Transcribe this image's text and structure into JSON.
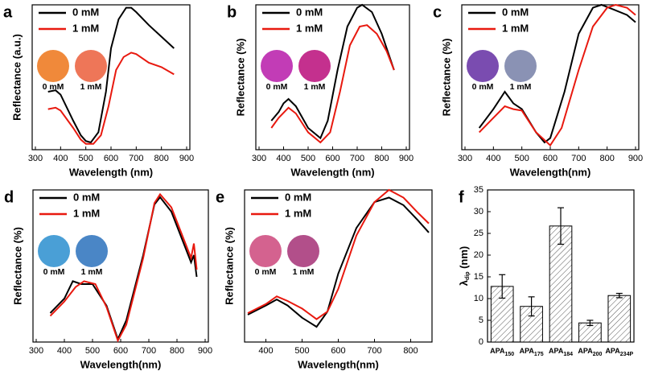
{
  "chart_data": [
    {
      "type": "line",
      "label": "a",
      "xlabel": "Wavelength (nm)",
      "ylabel": "Reflectance (a.u.)",
      "xlim": [
        300,
        900
      ],
      "xticks": [
        300,
        400,
        500,
        600,
        700,
        800,
        900
      ],
      "ylim": [
        0,
        100
      ],
      "series": [
        {
          "name": "0 mM",
          "color": "#000000",
          "x": [
            350,
            380,
            400,
            450,
            480,
            500,
            520,
            550,
            580,
            600,
            630,
            660,
            680,
            700,
            750,
            800,
            850
          ],
          "values": [
            40,
            41,
            38,
            20,
            10,
            6,
            5,
            12,
            40,
            70,
            90,
            98,
            98,
            95,
            86,
            78,
            70
          ]
        },
        {
          "name": "1 mM",
          "color": "#e8190f",
          "x": [
            350,
            380,
            400,
            450,
            480,
            500,
            530,
            560,
            590,
            620,
            650,
            680,
            700,
            750,
            800,
            850
          ],
          "values": [
            28,
            29,
            27,
            15,
            7,
            4,
            4,
            10,
            30,
            55,
            64,
            67,
            66,
            60,
            57,
            52
          ]
        }
      ],
      "insets": {
        "labels": [
          "0 mM",
          "1 mM"
        ],
        "colors": [
          "#f0893a",
          "#ee7658"
        ]
      }
    },
    {
      "type": "line",
      "label": "b",
      "xlabel": "Wavelength (nm)",
      "ylabel": "Reflectance (%)",
      "xlim": [
        300,
        900
      ],
      "xticks": [
        300,
        400,
        500,
        600,
        700,
        800,
        900
      ],
      "ylim": [
        0,
        100
      ],
      "series": [
        {
          "name": "0 mM",
          "color": "#000000",
          "x": [
            350,
            380,
            400,
            420,
            450,
            500,
            550,
            580,
            620,
            660,
            700,
            720,
            760,
            800,
            850
          ],
          "values": [
            20,
            26,
            32,
            35,
            30,
            15,
            8,
            20,
            55,
            85,
            98,
            100,
            95,
            80,
            55
          ]
        },
        {
          "name": "1 mM",
          "color": "#e8190f",
          "x": [
            350,
            380,
            420,
            450,
            500,
            550,
            590,
            630,
            670,
            710,
            740,
            780,
            820,
            850
          ],
          "values": [
            15,
            22,
            29,
            25,
            12,
            5,
            12,
            40,
            72,
            85,
            86,
            80,
            68,
            55
          ]
        }
      ],
      "insets": {
        "labels": [
          "0 mM",
          "1 mM"
        ],
        "colors": [
          "#c23cb6",
          "#c4308e"
        ]
      }
    },
    {
      "type": "line",
      "label": "c",
      "xlabel": "Wavelength(nm)",
      "ylabel": "Reflectance (%)",
      "xlim": [
        300,
        900
      ],
      "xticks": [
        300,
        400,
        500,
        600,
        700,
        800,
        900
      ],
      "ylim": [
        0,
        100
      ],
      "series": [
        {
          "name": "0 mM",
          "color": "#000000",
          "x": [
            350,
            400,
            440,
            470,
            500,
            550,
            580,
            600,
            650,
            700,
            750,
            780,
            820,
            870,
            900
          ],
          "values": [
            15,
            28,
            40,
            32,
            28,
            12,
            5,
            8,
            40,
            80,
            98,
            100,
            97,
            93,
            88
          ]
        },
        {
          "name": "1 mM",
          "color": "#e8190f",
          "x": [
            350,
            400,
            440,
            470,
            500,
            550,
            600,
            640,
            700,
            750,
            800,
            830,
            870,
            900
          ],
          "values": [
            12,
            22,
            30,
            28,
            27,
            12,
            3,
            15,
            55,
            85,
            98,
            100,
            98,
            93
          ]
        }
      ],
      "insets": {
        "labels": [
          "0 mM",
          "1 mM"
        ],
        "colors": [
          "#7a4cb0",
          "#8a92b4"
        ]
      }
    },
    {
      "type": "line",
      "label": "d",
      "xlabel": "Wavelength(nm)",
      "ylabel": "Reflectance (%)",
      "xlim": [
        300,
        900
      ],
      "xticks": [
        300,
        400,
        500,
        600,
        700,
        800,
        900
      ],
      "ylim": [
        0,
        105
      ],
      "series": [
        {
          "name": "0 mM",
          "color": "#000000",
          "x": [
            350,
            400,
            430,
            460,
            500,
            550,
            590,
            620,
            680,
            720,
            740,
            780,
            820,
            850,
            860,
            870
          ],
          "values": [
            20,
            30,
            42,
            40,
            40,
            25,
            2,
            15,
            60,
            95,
            100,
            90,
            70,
            55,
            60,
            45
          ]
        },
        {
          "name": "1 mM",
          "color": "#e8190f",
          "x": [
            350,
            400,
            440,
            470,
            510,
            550,
            590,
            620,
            680,
            720,
            740,
            780,
            820,
            850,
            860,
            870
          ],
          "values": [
            18,
            28,
            38,
            42,
            40,
            24,
            1,
            12,
            58,
            96,
            102,
            93,
            73,
            58,
            68,
            50
          ]
        }
      ],
      "insets": {
        "labels": [
          "0 mM",
          "1 mM"
        ],
        "colors": [
          "#4a9fd6",
          "#4a86c6"
        ]
      }
    },
    {
      "type": "line",
      "label": "e",
      "xlabel": "Wavelength(nm)",
      "ylabel": "Reflectance (%)",
      "xlim": [
        350,
        850
      ],
      "xticks": [
        400,
        500,
        600,
        700,
        800
      ],
      "ylim": [
        0,
        100
      ],
      "series": [
        {
          "name": "0 mM",
          "color": "#000000",
          "x": [
            350,
            400,
            430,
            460,
            500,
            540,
            570,
            600,
            650,
            700,
            740,
            780,
            820,
            850
          ],
          "values": [
            18,
            24,
            28,
            24,
            16,
            10,
            20,
            45,
            75,
            92,
            95,
            90,
            80,
            72
          ]
        },
        {
          "name": "1 mM",
          "color": "#e8190f",
          "x": [
            350,
            400,
            430,
            460,
            500,
            540,
            570,
            600,
            650,
            700,
            740,
            780,
            820,
            850
          ],
          "values": [
            19,
            25,
            30,
            27,
            22,
            15,
            20,
            35,
            70,
            92,
            100,
            95,
            85,
            78
          ]
        }
      ],
      "insets": {
        "labels": [
          "0 mM",
          "1 mM"
        ],
        "colors": [
          "#d4628f",
          "#b24f8a"
        ]
      }
    },
    {
      "type": "bar",
      "label": "f",
      "ylabel": "λdip (nm)",
      "categories": [
        "APA150",
        "APA175",
        "APA184",
        "APA200",
        "APA234P"
      ],
      "values": [
        12.8,
        8.2,
        26.7,
        4.4,
        10.7
      ],
      "errors": [
        2.7,
        2.2,
        4.2,
        0.6,
        0.5
      ],
      "ylim": [
        0,
        35
      ],
      "yticks": [
        0,
        5,
        10,
        15,
        20,
        25,
        30,
        35
      ]
    }
  ]
}
